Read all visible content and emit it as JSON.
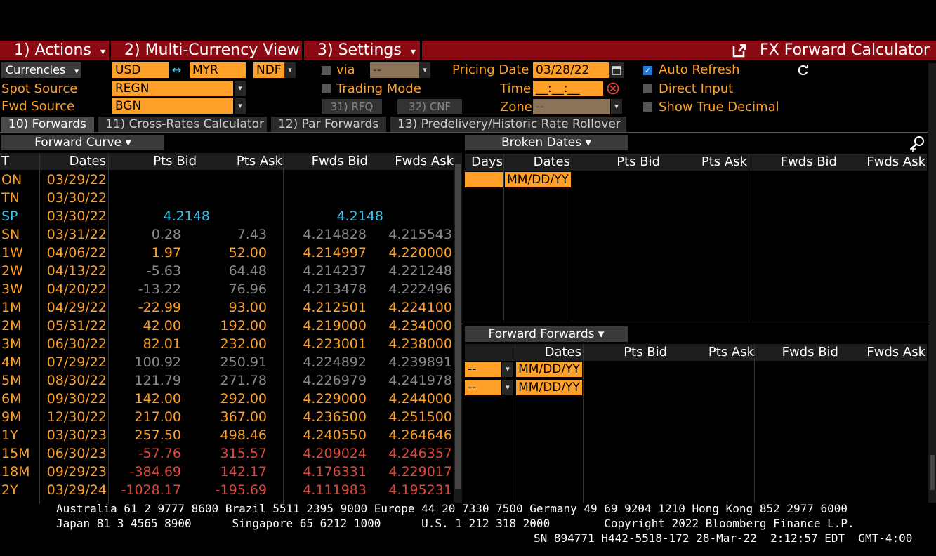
{
  "menu": {
    "actions": "1) Actions",
    "actions_caret": "▾",
    "multi_currency": "2) Multi-Currency View",
    "settings": "3) Settings",
    "settings_caret": "▾",
    "title": "FX Forward Calculator"
  },
  "controls": {
    "currencies_label": "Currencies",
    "currencies_caret": "▾",
    "base_ccy": "USD",
    "swap_arrow": "↔",
    "quote_ccy": "MYR",
    "ndf": "NDF",
    "via_label": "via",
    "via_value": "--",
    "pricing_date_label": "Pricing Date",
    "pricing_date": "03/28/22",
    "auto_refresh": "Auto Refresh",
    "spot_source_label": "Spot Source",
    "spot_source": "REGN",
    "trading_mode": "Trading Mode",
    "time_label": "Time",
    "time_value": "__:__:__",
    "direct_input": "Direct Input",
    "fwd_source_label": "Fwd Source",
    "fwd_source": "BGN",
    "rfq": "31) RFQ",
    "cnf": "32) CNF",
    "zone_label": "Zone",
    "zone_value": "--",
    "show_true_decimal": "Show True Decimal"
  },
  "tabs": [
    {
      "label": "10) Forwards"
    },
    {
      "label": "11) Cross-Rates Calculator"
    },
    {
      "label": "12) Par Forwards"
    },
    {
      "label": "13) Predelivery/Historic Rate Rollover"
    }
  ],
  "forward_curve": {
    "header": "Forward Curve ▾",
    "columns": {
      "tenor": "T",
      "dates": "Dates",
      "pts_bid": "Pts Bid",
      "pts_ask": "Pts Ask",
      "fwds_bid": "Fwds Bid",
      "fwds_ask": "Fwds Ask"
    },
    "rows": [
      {
        "t": "ON",
        "d": "03/29/22",
        "pb": "",
        "pa": "",
        "fb": "",
        "fa": "",
        "tc": "#ffa028",
        "vc": "#ffa028"
      },
      {
        "t": "TN",
        "d": "03/30/22",
        "pb": "",
        "pa": "",
        "fb": "",
        "fa": "",
        "tc": "#ffa028",
        "vc": "#ffa028"
      },
      {
        "t": "SP",
        "d": "03/30/22",
        "pb": "4.2148",
        "pa": "",
        "fb": "4.2148",
        "fa": "",
        "tc": "#34c6f0",
        "vc": "#34c6f0"
      },
      {
        "t": "SN",
        "d": "03/31/22",
        "pb": "0.28",
        "pa": "7.43",
        "fb": "4.214828",
        "fa": "4.215543",
        "tc": "#ffa028",
        "vc": "#8a8a8a"
      },
      {
        "t": "1W",
        "d": "04/06/22",
        "pb": "1.97",
        "pa": "52.00",
        "fb": "4.214997",
        "fa": "4.220000",
        "tc": "#ffa028",
        "vc": "#ffa028"
      },
      {
        "t": "2W",
        "d": "04/13/22",
        "pb": "-5.63",
        "pa": "64.48",
        "fb": "4.214237",
        "fa": "4.221248",
        "tc": "#ffa028",
        "vc": "#8a8a8a"
      },
      {
        "t": "3W",
        "d": "04/20/22",
        "pb": "-13.22",
        "pa": "76.96",
        "fb": "4.213478",
        "fa": "4.222496",
        "tc": "#ffa028",
        "vc": "#8a8a8a"
      },
      {
        "t": "1M",
        "d": "04/29/22",
        "pb": "-22.99",
        "pa": "93.00",
        "fb": "4.212501",
        "fa": "4.224100",
        "tc": "#ffa028",
        "vc": "#ffa028"
      },
      {
        "t": "2M",
        "d": "05/31/22",
        "pb": "42.00",
        "pa": "192.00",
        "fb": "4.219000",
        "fa": "4.234000",
        "tc": "#ffa028",
        "vc": "#ffa028"
      },
      {
        "t": "3M",
        "d": "06/30/22",
        "pb": "82.01",
        "pa": "232.00",
        "fb": "4.223001",
        "fa": "4.238000",
        "tc": "#ffa028",
        "vc": "#ffa028"
      },
      {
        "t": "4M",
        "d": "07/29/22",
        "pb": "100.92",
        "pa": "250.91",
        "fb": "4.224892",
        "fa": "4.239891",
        "tc": "#ffa028",
        "vc": "#8a8a8a"
      },
      {
        "t": "5M",
        "d": "08/30/22",
        "pb": "121.79",
        "pa": "271.78",
        "fb": "4.226979",
        "fa": "4.241978",
        "tc": "#ffa028",
        "vc": "#8a8a8a"
      },
      {
        "t": "6M",
        "d": "09/30/22",
        "pb": "142.00",
        "pa": "292.00",
        "fb": "4.229000",
        "fa": "4.244000",
        "tc": "#ffa028",
        "vc": "#ffa028"
      },
      {
        "t": "9M",
        "d": "12/30/22",
        "pb": "217.00",
        "pa": "367.00",
        "fb": "4.236500",
        "fa": "4.251500",
        "tc": "#ffa028",
        "vc": "#ffa028"
      },
      {
        "t": "1Y",
        "d": "03/30/23",
        "pb": "257.50",
        "pa": "498.46",
        "fb": "4.240550",
        "fa": "4.264646",
        "tc": "#ffa028",
        "vc": "#ffa028"
      },
      {
        "t": "15M",
        "d": "06/30/23",
        "pb": "-57.76",
        "pa": "315.57",
        "fb": "4.209024",
        "fa": "4.246357",
        "tc": "#ffa028",
        "vc": "#e0473a"
      },
      {
        "t": "18M",
        "d": "09/29/23",
        "pb": "-384.69",
        "pa": "142.17",
        "fb": "4.176331",
        "fa": "4.229017",
        "tc": "#ffa028",
        "vc": "#e0473a"
      },
      {
        "t": "2Y",
        "d": "03/29/24",
        "pb": "-1028.17",
        "pa": "-195.69",
        "fb": "4.111983",
        "fa": "4.195231",
        "tc": "#ffa028",
        "vc": "#e0473a"
      }
    ]
  },
  "broken_dates": {
    "header": "Broken Dates ▾",
    "columns": {
      "days": "Days",
      "dates": "Dates",
      "pts_bid": "Pts Bid",
      "pts_ask": "Pts Ask",
      "fwds_bid": "Fwds Bid",
      "fwds_ask": "Fwds Ask"
    },
    "date_placeholder": "MM/DD/YY"
  },
  "forward_forwards": {
    "header": "Forward Forwards ▾",
    "columns": {
      "dates": "Dates",
      "pts_bid": "Pts Bid",
      "pts_ask": "Pts Ask",
      "fwds_bid": "Fwds Bid",
      "fwds_ask": "Fwds Ask"
    },
    "rows": [
      {
        "sel": "--",
        "date": "MM/DD/YY"
      },
      {
        "sel": "--",
        "date": "MM/DD/YY"
      }
    ]
  },
  "footer": {
    "line1": "Australia 61 2 9777 8600 Brazil 5511 2395 9000 Europe 44 20 7330 7500 Germany 49 69 9204 1210 Hong Kong 852 2977 6000",
    "line2": "Japan 81 3 4565 8900      Singapore 65 6212 1000      U.S. 1 212 318 2000        Copyright 2022 Bloomberg Finance L.P.",
    "line3": "SN 894771 H442-5518-172 28-Mar-22  2:12:57 EDT  GMT-4:00"
  },
  "colors": {
    "amber": "#ffa028",
    "menu_red": "#8b0a14",
    "cyan": "#34c6f0",
    "red": "#e0473a",
    "grey": "#8a8a8a"
  }
}
